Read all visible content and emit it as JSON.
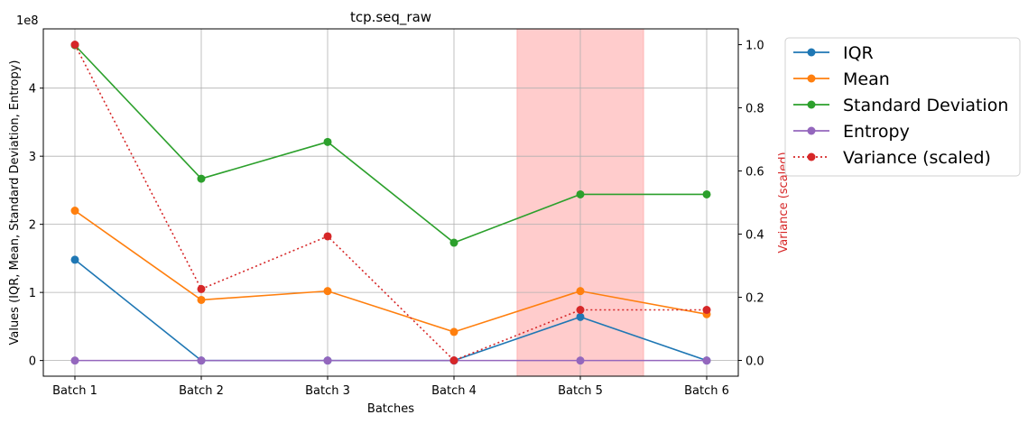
{
  "chart_data": {
    "type": "line",
    "title": "tcp.seq_raw",
    "xlabel": "Batches",
    "ylabel_left": "Values (IQR, Mean, Standard Deviation, Entropy)",
    "ylabel_right": "Variance (scaled)",
    "left_axis_offset_label": "1e8",
    "categories": [
      "Batch 1",
      "Batch 2",
      "Batch 3",
      "Batch 4",
      "Batch 5",
      "Batch 6"
    ],
    "ylim_left": [
      -0.23,
      4.87
    ],
    "ylim_right": [
      -0.05,
      1.05
    ],
    "yticks_left": [
      0,
      1,
      2,
      3,
      4
    ],
    "yticks_right": [
      "0.0",
      "0.2",
      "0.4",
      "0.6",
      "0.8",
      "1.0"
    ],
    "highlight_category": "Batch 5",
    "highlight_color": "#ffcccc",
    "grid": true,
    "legend_placement": "outside-right-top",
    "series": [
      {
        "name": "IQR",
        "axis": "left",
        "color": "#1f77b4",
        "style": "solid",
        "values": [
          1.48,
          0.0,
          0.0,
          0.0,
          0.64,
          0.0
        ]
      },
      {
        "name": "Mean",
        "axis": "left",
        "color": "#ff7f0e",
        "style": "solid",
        "values": [
          2.2,
          0.89,
          1.02,
          0.42,
          1.02,
          0.68
        ]
      },
      {
        "name": "Standard Deviation",
        "axis": "left",
        "color": "#2ca02c",
        "style": "solid",
        "values": [
          4.63,
          2.67,
          3.21,
          1.73,
          2.44,
          2.44
        ]
      },
      {
        "name": "Entropy",
        "axis": "left",
        "color": "#9467bd",
        "style": "solid",
        "values": [
          0.0,
          0.0,
          0.0,
          0.0,
          0.0,
          0.0
        ]
      },
      {
        "name": "Variance (scaled)",
        "axis": "right",
        "color": "#d62728",
        "style": "dotted",
        "values": [
          1.0,
          0.226,
          0.393,
          0.0,
          0.16,
          0.16
        ]
      }
    ]
  }
}
